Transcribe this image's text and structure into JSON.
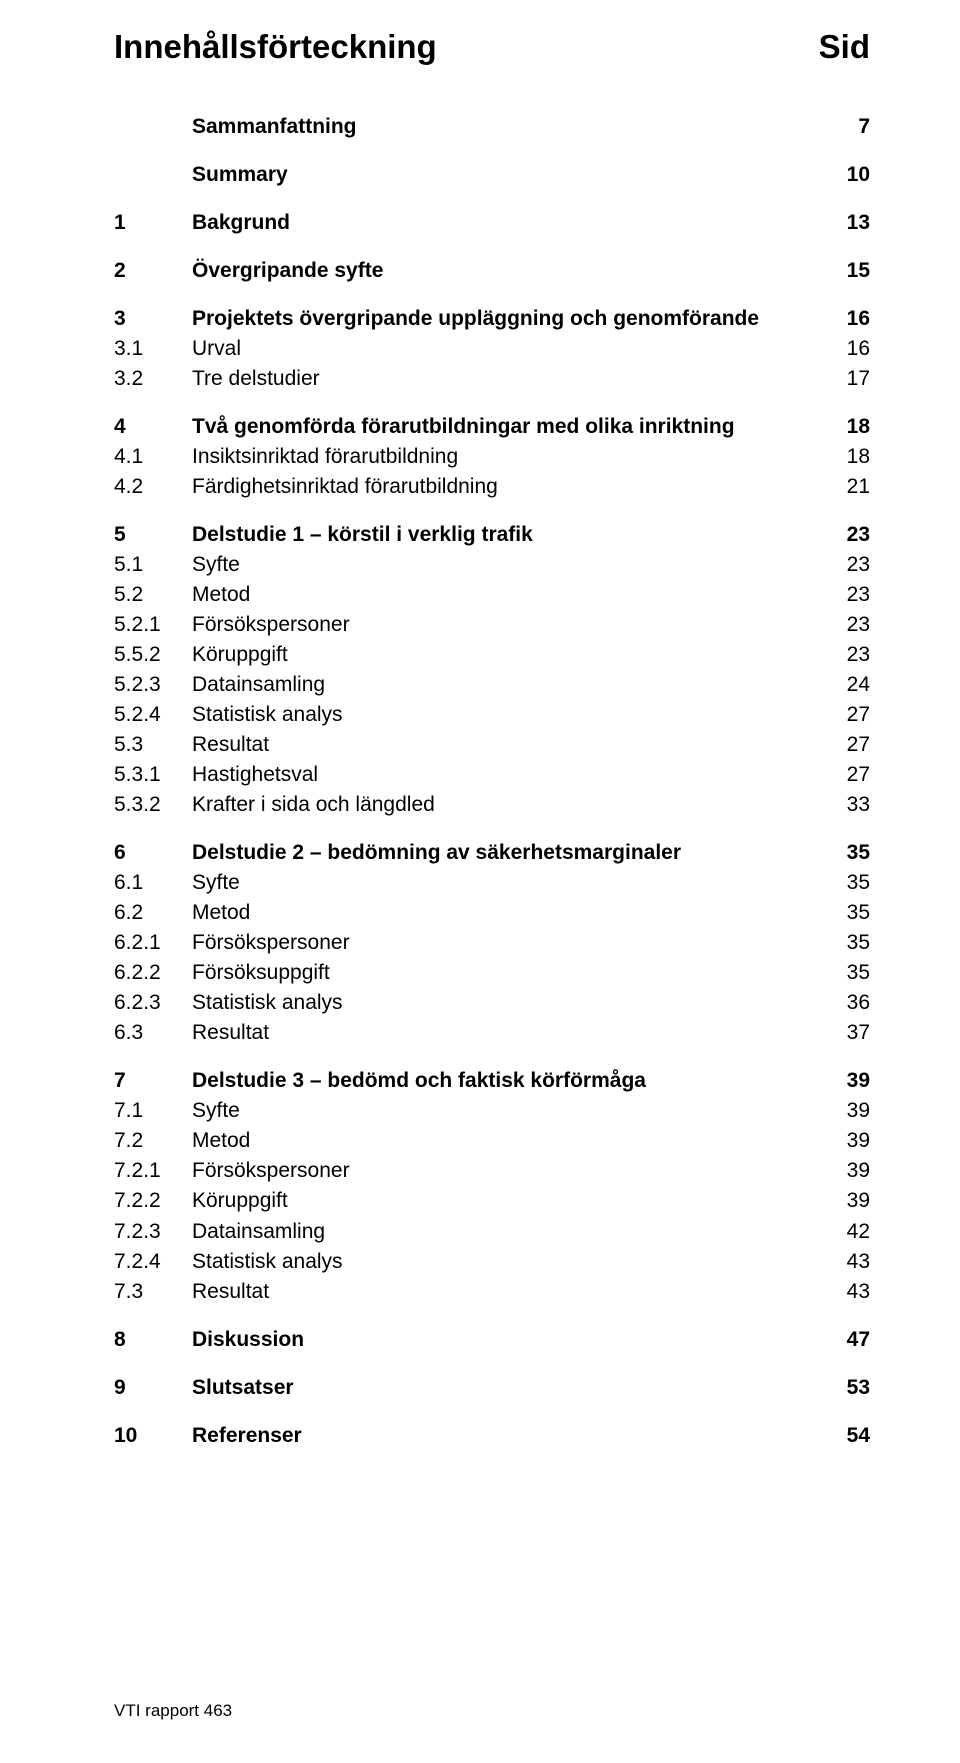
{
  "title_left": "Innehållsförteckning",
  "title_right": "Sid",
  "footer": "VTI rapport 463",
  "sections": [
    {
      "rows": [
        {
          "num": "",
          "label": "Sammanfattning",
          "page": "7",
          "bold": true
        }
      ]
    },
    {
      "rows": [
        {
          "num": "",
          "label": "Summary",
          "page": "10",
          "bold": true
        }
      ]
    },
    {
      "rows": [
        {
          "num": "1",
          "label": "Bakgrund",
          "page": "13",
          "bold": true
        }
      ]
    },
    {
      "rows": [
        {
          "num": "2",
          "label": "Övergripande syfte",
          "page": "15",
          "bold": true
        }
      ]
    },
    {
      "rows": [
        {
          "num": "3",
          "label": "Projektets övergripande uppläggning och genomförande",
          "page": "16",
          "bold": true
        },
        {
          "num": "3.1",
          "label": "Urval",
          "page": "16",
          "bold": false
        },
        {
          "num": "3.2",
          "label": "Tre delstudier",
          "page": "17",
          "bold": false
        }
      ]
    },
    {
      "rows": [
        {
          "num": "4",
          "label": "Två genomförda förarutbildningar med olika inriktning",
          "page": "18",
          "bold": true
        },
        {
          "num": "4.1",
          "label": "Insiktsinriktad förarutbildning",
          "page": "18",
          "bold": false
        },
        {
          "num": "4.2",
          "label": "Färdighetsinriktad förarutbildning",
          "page": "21",
          "bold": false
        }
      ]
    },
    {
      "rows": [
        {
          "num": "5",
          "label": "Delstudie 1 – körstil i verklig trafik",
          "page": "23",
          "bold": true
        },
        {
          "num": "5.1",
          "label": "Syfte",
          "page": "23",
          "bold": false
        },
        {
          "num": "5.2",
          "label": "Metod",
          "page": "23",
          "bold": false
        },
        {
          "num": "5.2.1",
          "label": "Försökspersoner",
          "page": "23",
          "bold": false
        },
        {
          "num": "5.5.2",
          "label": "Köruppgift",
          "page": "23",
          "bold": false
        },
        {
          "num": "5.2.3",
          "label": "Datainsamling",
          "page": "24",
          "bold": false
        },
        {
          "num": "5.2.4",
          "label": "Statistisk analys",
          "page": "27",
          "bold": false
        },
        {
          "num": "5.3",
          "label": "Resultat",
          "page": "27",
          "bold": false
        },
        {
          "num": "5.3.1",
          "label": "Hastighetsval",
          "page": "27",
          "bold": false
        },
        {
          "num": "5.3.2",
          "label": "Krafter i sida och längdled",
          "page": "33",
          "bold": false
        }
      ]
    },
    {
      "rows": [
        {
          "num": "6",
          "label": "Delstudie 2 – bedömning av säkerhetsmarginaler",
          "page": "35",
          "bold": true
        },
        {
          "num": "6.1",
          "label": "Syfte",
          "page": "35",
          "bold": false
        },
        {
          "num": "6.2",
          "label": "Metod",
          "page": "35",
          "bold": false
        },
        {
          "num": "6.2.1",
          "label": "Försökspersoner",
          "page": "35",
          "bold": false
        },
        {
          "num": "6.2.2",
          "label": "Försöksuppgift",
          "page": "35",
          "bold": false
        },
        {
          "num": "6.2.3",
          "label": "Statistisk analys",
          "page": "36",
          "bold": false
        },
        {
          "num": "6.3",
          "label": "Resultat",
          "page": "37",
          "bold": false
        }
      ]
    },
    {
      "rows": [
        {
          "num": "7",
          "label": "Delstudie 3 – bedömd och faktisk körförmåga",
          "page": "39",
          "bold": true
        },
        {
          "num": "7.1",
          "label": "Syfte",
          "page": "39",
          "bold": false
        },
        {
          "num": "7.2",
          "label": "Metod",
          "page": "39",
          "bold": false
        },
        {
          "num": "7.2.1",
          "label": "Försökspersoner",
          "page": "39",
          "bold": false
        },
        {
          "num": "7.2.2",
          "label": "Köruppgift",
          "page": "39",
          "bold": false
        },
        {
          "num": "7.2.3",
          "label": "Datainsamling",
          "page": "42",
          "bold": false
        },
        {
          "num": "7.2.4",
          "label": "Statistisk analys",
          "page": "43",
          "bold": false
        },
        {
          "num": "7.3",
          "label": "Resultat",
          "page": "43",
          "bold": false
        }
      ]
    },
    {
      "rows": [
        {
          "num": "8",
          "label": "Diskussion",
          "page": "47",
          "bold": true
        }
      ]
    },
    {
      "rows": [
        {
          "num": "9",
          "label": "Slutsatser",
          "page": "53",
          "bold": true
        }
      ]
    },
    {
      "rows": [
        {
          "num": "10",
          "label": "Referenser",
          "page": "54",
          "bold": true
        }
      ]
    }
  ]
}
